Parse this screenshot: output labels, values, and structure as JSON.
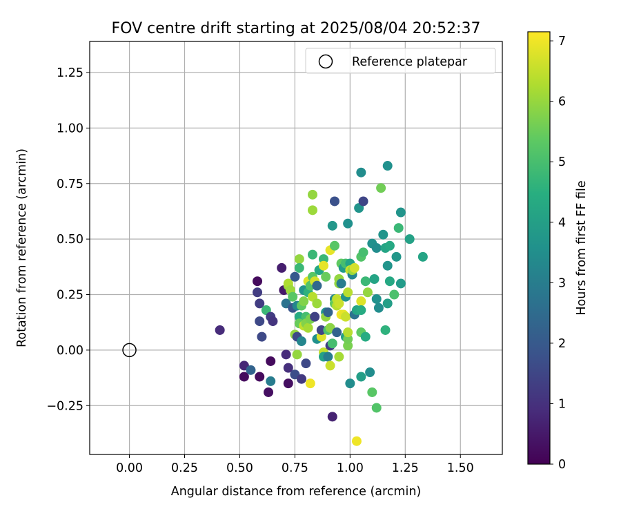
{
  "chart_data": {
    "type": "scatter",
    "title": "FOV centre drift starting at 2025/08/04 20:52:37",
    "xlabel": "Angular distance from reference (arcmin)",
    "ylabel": "Rotation from reference (arcmin)",
    "xlim": [
      -0.18,
      1.69
    ],
    "ylim": [
      -0.47,
      1.39
    ],
    "x_ticks": [
      0.0,
      0.25,
      0.5,
      0.75,
      1.0,
      1.25,
      1.5
    ],
    "x_tick_labels": [
      "0.00",
      "0.25",
      "0.50",
      "0.75",
      "1.00",
      "1.25",
      "1.50"
    ],
    "y_ticks": [
      -0.25,
      0.0,
      0.25,
      0.5,
      0.75,
      1.0,
      1.25
    ],
    "y_tick_labels": [
      "−0.25",
      "0.00",
      "0.25",
      "0.50",
      "0.75",
      "1.00",
      "1.25"
    ],
    "grid": true,
    "legend": {
      "position": "top-right",
      "entries": [
        {
          "label": "Reference platepar",
          "marker": "open-circle"
        }
      ]
    },
    "reference_point": {
      "x": 0.0,
      "y": 0.0
    },
    "colorbar": {
      "label": "Hours from first FF file",
      "range": [
        0,
        7.15
      ],
      "ticks": [
        0,
        1,
        2,
        3,
        4,
        5,
        6,
        7
      ],
      "tick_labels": [
        "0",
        "1",
        "2",
        "3",
        "4",
        "5",
        "6",
        "7"
      ],
      "colormap": "viridis"
    },
    "points": [
      {
        "x": 0.41,
        "y": 0.09,
        "t": 0.9
      },
      {
        "x": 0.52,
        "y": -0.12,
        "t": 0.2
      },
      {
        "x": 0.52,
        "y": -0.07,
        "t": 0.8
      },
      {
        "x": 0.55,
        "y": -0.09,
        "t": 2.3
      },
      {
        "x": 0.58,
        "y": 0.31,
        "t": 0.2
      },
      {
        "x": 0.58,
        "y": 0.26,
        "t": 1.3
      },
      {
        "x": 0.59,
        "y": 0.21,
        "t": 1.3
      },
      {
        "x": 0.59,
        "y": 0.13,
        "t": 1.6
      },
      {
        "x": 0.59,
        "y": -0.12,
        "t": 0.2
      },
      {
        "x": 0.6,
        "y": 0.06,
        "t": 1.6
      },
      {
        "x": 0.62,
        "y": 0.18,
        "t": 4.8
      },
      {
        "x": 0.63,
        "y": -0.19,
        "t": 0.3
      },
      {
        "x": 0.64,
        "y": 0.15,
        "t": 1.3
      },
      {
        "x": 0.64,
        "y": -0.05,
        "t": 0.2
      },
      {
        "x": 0.64,
        "y": -0.14,
        "t": 3.0
      },
      {
        "x": 0.65,
        "y": 0.13,
        "t": 1.1
      },
      {
        "x": 0.69,
        "y": 0.37,
        "t": 0.6
      },
      {
        "x": 0.7,
        "y": 0.27,
        "t": 0.5
      },
      {
        "x": 0.71,
        "y": 0.21,
        "t": 2.7
      },
      {
        "x": 0.71,
        "y": -0.02,
        "t": 0.9
      },
      {
        "x": 0.72,
        "y": -0.15,
        "t": 0.3
      },
      {
        "x": 0.72,
        "y": -0.08,
        "t": 1.0
      },
      {
        "x": 0.72,
        "y": 0.29,
        "t": 6.0
      },
      {
        "x": 0.72,
        "y": 0.3,
        "t": 6.3
      },
      {
        "x": 0.73,
        "y": 0.27,
        "t": 6.1
      },
      {
        "x": 0.74,
        "y": 0.24,
        "t": 5.3
      },
      {
        "x": 0.74,
        "y": 0.19,
        "t": 1.9
      },
      {
        "x": 0.75,
        "y": 0.33,
        "t": 2.0
      },
      {
        "x": 0.75,
        "y": 0.07,
        "t": 6.0
      },
      {
        "x": 0.75,
        "y": -0.11,
        "t": 1.7
      },
      {
        "x": 0.76,
        "y": 0.2,
        "t": 3.3
      },
      {
        "x": 0.76,
        "y": 0.06,
        "t": 1.6
      },
      {
        "x": 0.76,
        "y": -0.02,
        "t": 6.0
      },
      {
        "x": 0.77,
        "y": 0.41,
        "t": 6.0
      },
      {
        "x": 0.77,
        "y": 0.37,
        "t": 4.8
      },
      {
        "x": 0.77,
        "y": 0.15,
        "t": 4.4
      },
      {
        "x": 0.77,
        "y": 0.12,
        "t": 5.5
      },
      {
        "x": 0.78,
        "y": 0.04,
        "t": 3.3
      },
      {
        "x": 0.78,
        "y": 0.2,
        "t": 5.4
      },
      {
        "x": 0.78,
        "y": -0.13,
        "t": 1.2
      },
      {
        "x": 0.79,
        "y": 0.27,
        "t": 3.7
      },
      {
        "x": 0.79,
        "y": 0.22,
        "t": 5.8
      },
      {
        "x": 0.79,
        "y": 0.11,
        "t": 6.5
      },
      {
        "x": 0.8,
        "y": 0.15,
        "t": 5.0
      },
      {
        "x": 0.8,
        "y": 0.12,
        "t": 5.8
      },
      {
        "x": 0.8,
        "y": -0.06,
        "t": 1.6
      },
      {
        "x": 0.81,
        "y": 0.31,
        "t": 6.8
      },
      {
        "x": 0.81,
        "y": 0.26,
        "t": 4.6
      },
      {
        "x": 0.81,
        "y": 0.1,
        "t": 6.2
      },
      {
        "x": 0.82,
        "y": -0.15,
        "t": 7.0
      },
      {
        "x": 0.82,
        "y": 0.29,
        "t": 5.2
      },
      {
        "x": 0.82,
        "y": 0.14,
        "t": 5.7
      },
      {
        "x": 0.83,
        "y": 0.7,
        "t": 6.0
      },
      {
        "x": 0.83,
        "y": 0.63,
        "t": 6.1
      },
      {
        "x": 0.83,
        "y": 0.43,
        "t": 4.8
      },
      {
        "x": 0.83,
        "y": 0.33,
        "t": 5.3
      },
      {
        "x": 0.83,
        "y": 0.24,
        "t": 6.4
      },
      {
        "x": 0.84,
        "y": 0.15,
        "t": 1.4
      },
      {
        "x": 0.84,
        "y": 0.31,
        "t": 6.7
      },
      {
        "x": 0.85,
        "y": 0.29,
        "t": 2.4
      },
      {
        "x": 0.85,
        "y": 0.05,
        "t": 3.6
      },
      {
        "x": 0.85,
        "y": 0.21,
        "t": 6.1
      },
      {
        "x": 0.86,
        "y": 0.36,
        "t": 4.3
      },
      {
        "x": 0.87,
        "y": 0.06,
        "t": 6.8
      },
      {
        "x": 0.87,
        "y": 0.09,
        "t": 1.5
      },
      {
        "x": 0.88,
        "y": 0.41,
        "t": 4.8
      },
      {
        "x": 0.88,
        "y": 0.38,
        "t": 6.9
      },
      {
        "x": 0.88,
        "y": -0.01,
        "t": 6.5
      },
      {
        "x": 0.88,
        "y": -0.03,
        "t": 4.1
      },
      {
        "x": 0.89,
        "y": 0.33,
        "t": 5.5
      },
      {
        "x": 0.89,
        "y": 0.17,
        "t": 3.7
      },
      {
        "x": 0.89,
        "y": 0.15,
        "t": 6.0
      },
      {
        "x": 0.9,
        "y": 0.17,
        "t": 2.3
      },
      {
        "x": 0.9,
        "y": 0.09,
        "t": 5.1
      },
      {
        "x": 0.9,
        "y": -0.03,
        "t": 3.0
      },
      {
        "x": 0.91,
        "y": 0.02,
        "t": 1.3
      },
      {
        "x": 0.91,
        "y": 0.1,
        "t": 5.9
      },
      {
        "x": 0.91,
        "y": -0.07,
        "t": 6.6
      },
      {
        "x": 0.91,
        "y": 0.45,
        "t": 6.9
      },
      {
        "x": 0.92,
        "y": 0.56,
        "t": 3.8
      },
      {
        "x": 0.92,
        "y": 0.03,
        "t": 5.0
      },
      {
        "x": 0.92,
        "y": -0.3,
        "t": 0.7
      },
      {
        "x": 0.93,
        "y": 0.67,
        "t": 1.8
      },
      {
        "x": 0.93,
        "y": 0.47,
        "t": 5.3
      },
      {
        "x": 0.93,
        "y": 0.23,
        "t": 3.4
      },
      {
        "x": 0.93,
        "y": 0.21,
        "t": 5.4
      },
      {
        "x": 0.94,
        "y": 0.08,
        "t": 2.3
      },
      {
        "x": 0.94,
        "y": 0.2,
        "t": 6.4
      },
      {
        "x": 0.94,
        "y": 0.23,
        "t": 6.5
      },
      {
        "x": 0.95,
        "y": 0.21,
        "t": 6.6
      },
      {
        "x": 0.95,
        "y": -0.03,
        "t": 6.2
      },
      {
        "x": 0.95,
        "y": 0.3,
        "t": 6.0
      },
      {
        "x": 0.95,
        "y": 0.32,
        "t": 6.0
      },
      {
        "x": 0.96,
        "y": 0.39,
        "t": 5.4
      },
      {
        "x": 0.96,
        "y": 0.3,
        "t": 3.0
      },
      {
        "x": 0.96,
        "y": 0.16,
        "t": 7.0
      },
      {
        "x": 0.97,
        "y": 0.37,
        "t": 3.9
      },
      {
        "x": 0.97,
        "y": 0.16,
        "t": 6.9
      },
      {
        "x": 0.98,
        "y": 0.24,
        "t": 3.7
      },
      {
        "x": 0.98,
        "y": 0.39,
        "t": 5.0
      },
      {
        "x": 0.98,
        "y": 0.15,
        "t": 6.6
      },
      {
        "x": 0.98,
        "y": 0.06,
        "t": 4.0
      },
      {
        "x": 0.99,
        "y": 0.26,
        "t": 6.4
      },
      {
        "x": 0.99,
        "y": 0.02,
        "t": 5.7
      },
      {
        "x": 0.99,
        "y": 0.05,
        "t": 5.6
      },
      {
        "x": 0.99,
        "y": 0.08,
        "t": 6.4
      },
      {
        "x": 0.99,
        "y": 0.57,
        "t": 3.6
      },
      {
        "x": 1.0,
        "y": 0.39,
        "t": 4.2
      },
      {
        "x": 1.0,
        "y": 0.36,
        "t": 6.6
      },
      {
        "x": 1.0,
        "y": -0.15,
        "t": 3.5
      },
      {
        "x": 1.01,
        "y": 0.34,
        "t": 3.3
      },
      {
        "x": 1.01,
        "y": 0.36,
        "t": 6.1
      },
      {
        "x": 1.02,
        "y": 0.37,
        "t": 6.7
      },
      {
        "x": 1.02,
        "y": 0.16,
        "t": 2.7
      },
      {
        "x": 1.03,
        "y": -0.41,
        "t": 7.0
      },
      {
        "x": 1.03,
        "y": 0.18,
        "t": 4.2
      },
      {
        "x": 1.04,
        "y": 0.64,
        "t": 3.7
      },
      {
        "x": 1.05,
        "y": 0.8,
        "t": 3.5
      },
      {
        "x": 1.05,
        "y": 0.42,
        "t": 5.2
      },
      {
        "x": 1.05,
        "y": 0.22,
        "t": 6.8
      },
      {
        "x": 1.05,
        "y": 0.18,
        "t": 4.4
      },
      {
        "x": 1.05,
        "y": 0.08,
        "t": 5.4
      },
      {
        "x": 1.05,
        "y": -0.12,
        "t": 4.0
      },
      {
        "x": 1.06,
        "y": 0.44,
        "t": 5.0
      },
      {
        "x": 1.06,
        "y": 0.67,
        "t": 1.5
      },
      {
        "x": 1.07,
        "y": 0.31,
        "t": 4.8
      },
      {
        "x": 1.07,
        "y": 0.06,
        "t": 4.4
      },
      {
        "x": 1.08,
        "y": 0.26,
        "t": 6.0
      },
      {
        "x": 1.09,
        "y": -0.1,
        "t": 3.5
      },
      {
        "x": 1.1,
        "y": 0.48,
        "t": 3.6
      },
      {
        "x": 1.1,
        "y": -0.19,
        "t": 5.3
      },
      {
        "x": 1.11,
        "y": 0.32,
        "t": 4.2
      },
      {
        "x": 1.12,
        "y": 0.46,
        "t": 3.5
      },
      {
        "x": 1.12,
        "y": 0.23,
        "t": 3.6
      },
      {
        "x": 1.12,
        "y": -0.26,
        "t": 5.2
      },
      {
        "x": 1.13,
        "y": 0.19,
        "t": 3.5
      },
      {
        "x": 1.14,
        "y": 0.73,
        "t": 5.6
      },
      {
        "x": 1.15,
        "y": 0.52,
        "t": 3.7
      },
      {
        "x": 1.16,
        "y": 0.46,
        "t": 4.2
      },
      {
        "x": 1.16,
        "y": 0.09,
        "t": 4.6
      },
      {
        "x": 1.17,
        "y": 0.83,
        "t": 3.6
      },
      {
        "x": 1.17,
        "y": 0.38,
        "t": 3.7
      },
      {
        "x": 1.17,
        "y": 0.21,
        "t": 4.0
      },
      {
        "x": 1.18,
        "y": 0.47,
        "t": 4.3
      },
      {
        "x": 1.18,
        "y": 0.31,
        "t": 4.3
      },
      {
        "x": 1.2,
        "y": 0.25,
        "t": 5.1
      },
      {
        "x": 1.21,
        "y": 0.42,
        "t": 3.8
      },
      {
        "x": 1.22,
        "y": 0.55,
        "t": 4.8
      },
      {
        "x": 1.23,
        "y": 0.3,
        "t": 3.9
      },
      {
        "x": 1.23,
        "y": 0.62,
        "t": 3.7
      },
      {
        "x": 1.27,
        "y": 0.5,
        "t": 4.1
      },
      {
        "x": 1.33,
        "y": 0.42,
        "t": 4.2
      }
    ]
  }
}
